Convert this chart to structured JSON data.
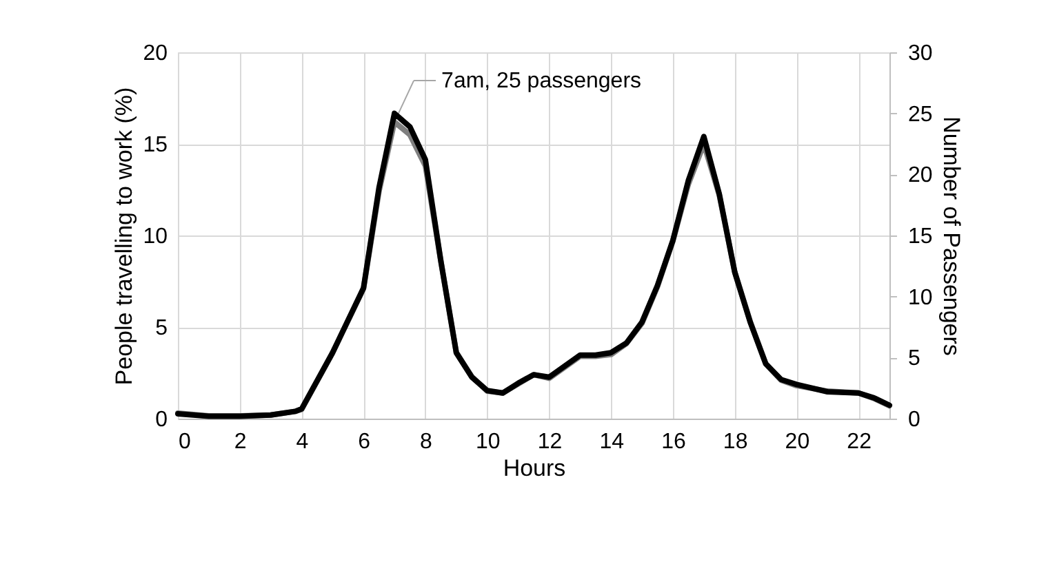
{
  "chart_data": {
    "type": "line",
    "xlabel": "Hours",
    "ylabel": "People travelling to work (%)",
    "y2label": "Number of Passengers",
    "xlim": [
      0,
      23
    ],
    "xticks": [
      0,
      2,
      4,
      6,
      8,
      10,
      12,
      14,
      16,
      18,
      20,
      22
    ],
    "ylim": [
      0,
      20
    ],
    "yticks": [
      0,
      5,
      10,
      15,
      20
    ],
    "y2lim": [
      0,
      30
    ],
    "y2ticks": [
      0,
      5,
      10,
      15,
      20,
      25,
      30
    ],
    "grid": true,
    "marker": "none",
    "line_style": "solid",
    "x": [
      0,
      1,
      2,
      3,
      3.8,
      4,
      5,
      6,
      6.5,
      7,
      7.5,
      8,
      8.5,
      9,
      9.5,
      10,
      10.5,
      11,
      11.5,
      12,
      13,
      13.5,
      14,
      14.5,
      15,
      15.5,
      16,
      16.5,
      17,
      17.5,
      18,
      18.5,
      19,
      19.5,
      20,
      21,
      22,
      22.5,
      23
    ],
    "series": [
      {
        "color": "#7f7f7f",
        "values": [
          0.3,
          0.15,
          0.15,
          0.2,
          0.4,
          0.5,
          3.6,
          7.1,
          12.4,
          16.2,
          15.5,
          13.8,
          8.6,
          3.6,
          2.3,
          1.5,
          1.4,
          1.9,
          2.4,
          2.2,
          3.4,
          3.4,
          3.5,
          4.1,
          5.2,
          7.2,
          9.7,
          12.8,
          15,
          12.2,
          8,
          5.3,
          3,
          2.1,
          1.8,
          1.5,
          1.4,
          1.1,
          0.7
        ]
      },
      {
        "color": "#000000",
        "axis": "y2",
        "values": [
          0.4,
          0.2,
          0.2,
          0.3,
          0.6,
          0.8,
          5.4,
          10.7,
          18.9,
          25,
          23.9,
          21.2,
          12.9,
          5.4,
          3.4,
          2.3,
          2.1,
          2.9,
          3.6,
          3.4,
          5.2,
          5.2,
          5.4,
          6.2,
          7.9,
          10.9,
          14.6,
          19.5,
          23.1,
          18.4,
          12,
          7.9,
          4.5,
          3.2,
          2.8,
          2.2,
          2.1,
          1.7,
          1.1
        ]
      }
    ],
    "annotations": [
      {
        "text": "7am, 25 passengers",
        "x": 7,
        "y": 16.2
      }
    ]
  }
}
